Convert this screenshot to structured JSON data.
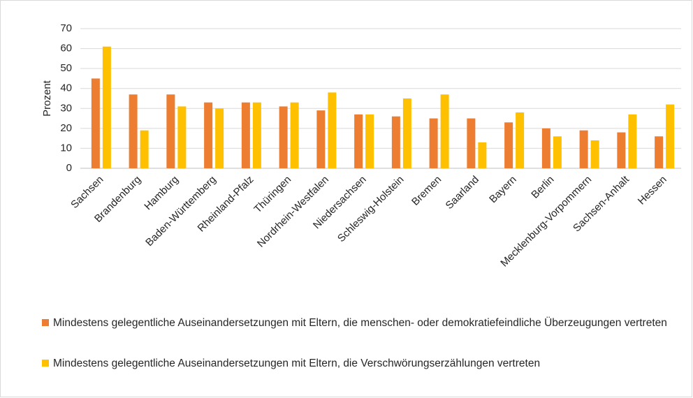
{
  "chart_data": {
    "type": "bar",
    "y_label": "Prozent",
    "categories": [
      "Sachsen",
      "Brandenburg",
      "Hamburg",
      "Baden-Württemberg",
      "Rheinland-Pfalz",
      "Thüringen",
      "Nordrhein-Westfalen",
      "Niedersachsen",
      "Schleswig-Holstein",
      "Bremen",
      "Saarland",
      "Bayern",
      "Berlin",
      "Mecklenburg-Vorpommern",
      "Sachsen-Anhalt",
      "Hessen"
    ],
    "series": [
      {
        "name": "Mindestens gelegentliche Auseinandersetzungen mit Eltern, die menschen- oder demokratiefeindliche Überzeugungen vertreten",
        "color": "#ED7D31",
        "values": [
          45,
          37,
          37,
          33,
          33,
          31,
          29,
          27,
          26,
          25,
          25,
          23,
          20,
          19,
          18,
          16
        ]
      },
      {
        "name": "Mindestens gelegentliche Auseinandersetzungen mit Eltern, die Verschwörungserzählungen vertreten",
        "color": "#FFC000",
        "values": [
          61,
          19,
          31,
          30,
          33,
          33,
          38,
          27,
          35,
          37,
          13,
          28,
          16,
          14,
          27,
          32
        ]
      }
    ],
    "ylim": [
      0,
      70
    ],
    "yticks": [
      0,
      10,
      20,
      30,
      40,
      50,
      60,
      70
    ],
    "grid": true
  }
}
